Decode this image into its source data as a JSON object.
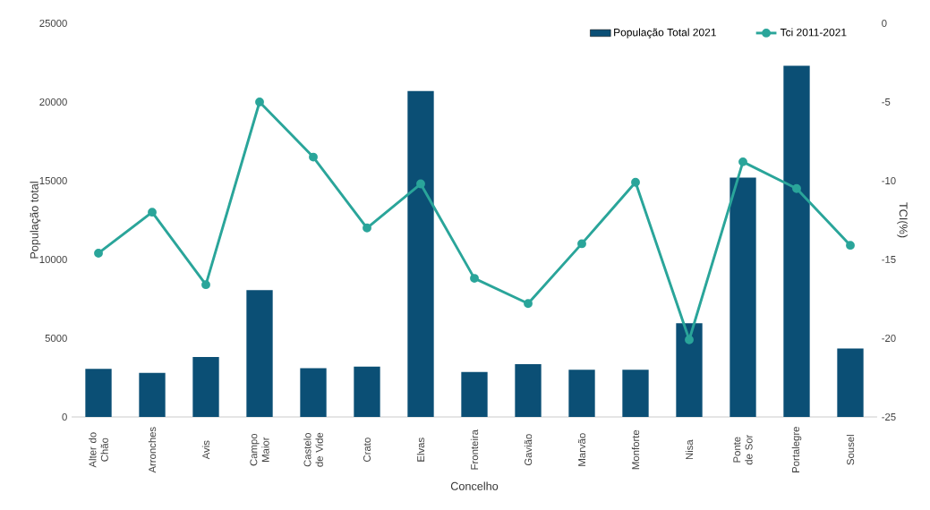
{
  "chart_data": {
    "type": "bar",
    "categories": [
      "Alter do Chão",
      "Arronches",
      "Avis",
      "Campo Maior",
      "Castelo de Vide",
      "Crato",
      "Elvas",
      "Fronteira",
      "Gavião",
      "Marvão",
      "Monforte",
      "Nisa",
      "Ponte de Sor",
      "Portalegre",
      "Sousel"
    ],
    "series": [
      {
        "name": "População Total 2021",
        "color": "#0b4f75",
        "values": [
          3050,
          2800,
          3800,
          8050,
          3100,
          3200,
          20700,
          2850,
          3350,
          3000,
          3000,
          5950,
          15200,
          22300,
          4350
        ]
      },
      {
        "name": "Tci 2011-2021",
        "type": "line",
        "axis": "y2",
        "color": "#2aa59a",
        "marker": "circle",
        "values": [
          -14.6,
          -12.0,
          -16.6,
          -5.0,
          -8.5,
          -13.0,
          -10.2,
          -16.2,
          -17.8,
          -14.0,
          -10.1,
          -20.1,
          -8.8,
          -10.5,
          -14.1
        ]
      }
    ],
    "xlabel": "Concelho",
    "ylabel": "População total",
    "y2label": "TCI(%)",
    "ylim": [
      0,
      25000
    ],
    "yticks": [
      0,
      5000,
      10000,
      15000,
      20000,
      25000
    ],
    "y2lim": [
      -25,
      0
    ],
    "y2ticks": [
      -25,
      -20,
      -15,
      -10,
      -5,
      0
    ],
    "legend": "top right"
  }
}
